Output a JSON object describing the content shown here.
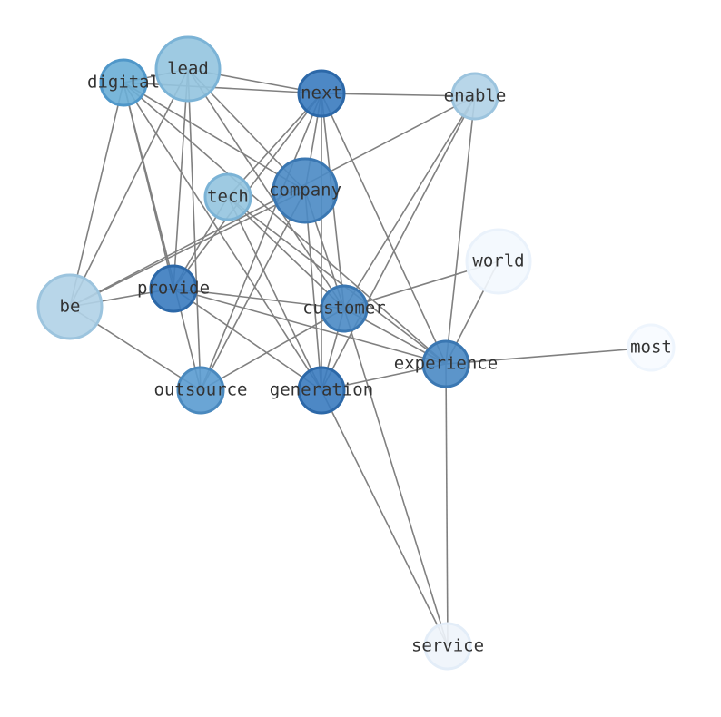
{
  "nodes": [
    {
      "label": "digital"
    },
    {
      "label": "lead"
    },
    {
      "label": "next"
    },
    {
      "label": "enable"
    },
    {
      "label": "tech"
    },
    {
      "label": "company"
    },
    {
      "label": "world"
    },
    {
      "label": "be"
    },
    {
      "label": "provide"
    },
    {
      "label": "customer"
    },
    {
      "label": "experience"
    },
    {
      "label": "most"
    },
    {
      "label": "outsource"
    },
    {
      "label": "generation"
    },
    {
      "label": "service"
    }
  ]
}
